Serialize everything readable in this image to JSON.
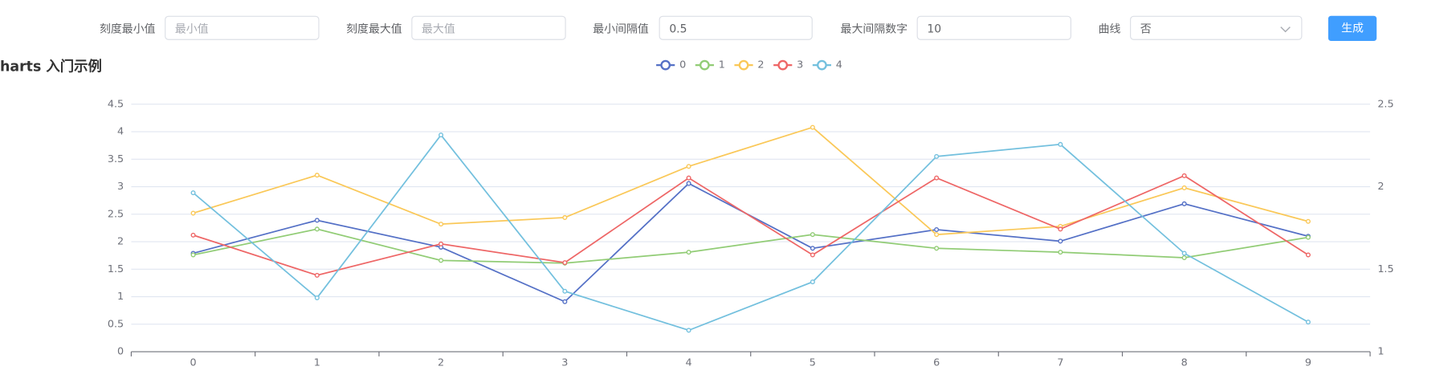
{
  "form": {
    "fields": [
      {
        "label": "刻度最小值",
        "placeholder": "最小值"
      },
      {
        "label": "刻度最大值",
        "placeholder": "最大值"
      },
      {
        "label": "最小间隔值",
        "value": "0.5"
      },
      {
        "label": "最大间隔数字",
        "value": "10"
      }
    ],
    "select": {
      "label": "曲线",
      "value": "否"
    },
    "button": "生成"
  },
  "chart_data": {
    "type": "line",
    "title": "harts 入门示例",
    "categories": [
      "0",
      "1",
      "2",
      "3",
      "4",
      "5",
      "6",
      "7",
      "8",
      "9"
    ],
    "series": [
      {
        "name": "0",
        "color": "#5470c6",
        "values": [
          1.79,
          2.39,
          1.9,
          0.91,
          3.06,
          1.88,
          2.22,
          2.01,
          2.69,
          2.1
        ]
      },
      {
        "name": "1",
        "color": "#91cc75",
        "values": [
          1.76,
          2.23,
          1.66,
          1.61,
          1.81,
          2.13,
          1.88,
          1.81,
          1.71,
          2.08
        ]
      },
      {
        "name": "2",
        "color": "#fac858",
        "values": [
          2.52,
          3.21,
          2.32,
          2.44,
          3.37,
          4.08,
          2.13,
          2.28,
          2.98,
          2.37
        ]
      },
      {
        "name": "3",
        "color": "#ee6666",
        "values": [
          2.12,
          1.39,
          1.96,
          1.62,
          3.16,
          1.76,
          3.16,
          2.23,
          3.2,
          1.76
        ]
      },
      {
        "name": "4",
        "color": "#73c0de",
        "values": [
          2.89,
          0.98,
          3.94,
          1.1,
          0.39,
          1.27,
          3.55,
          3.77,
          1.79,
          0.54
        ]
      }
    ],
    "ylim": [
      0,
      4.5
    ],
    "yticks": [
      0,
      0.5,
      1,
      1.5,
      2,
      2.5,
      3,
      3.5,
      4,
      4.5
    ],
    "y2lim": [
      1,
      2.5
    ],
    "y2ticks": [
      1,
      1.5,
      2,
      2.5
    ],
    "grid": true,
    "legend": "top"
  }
}
